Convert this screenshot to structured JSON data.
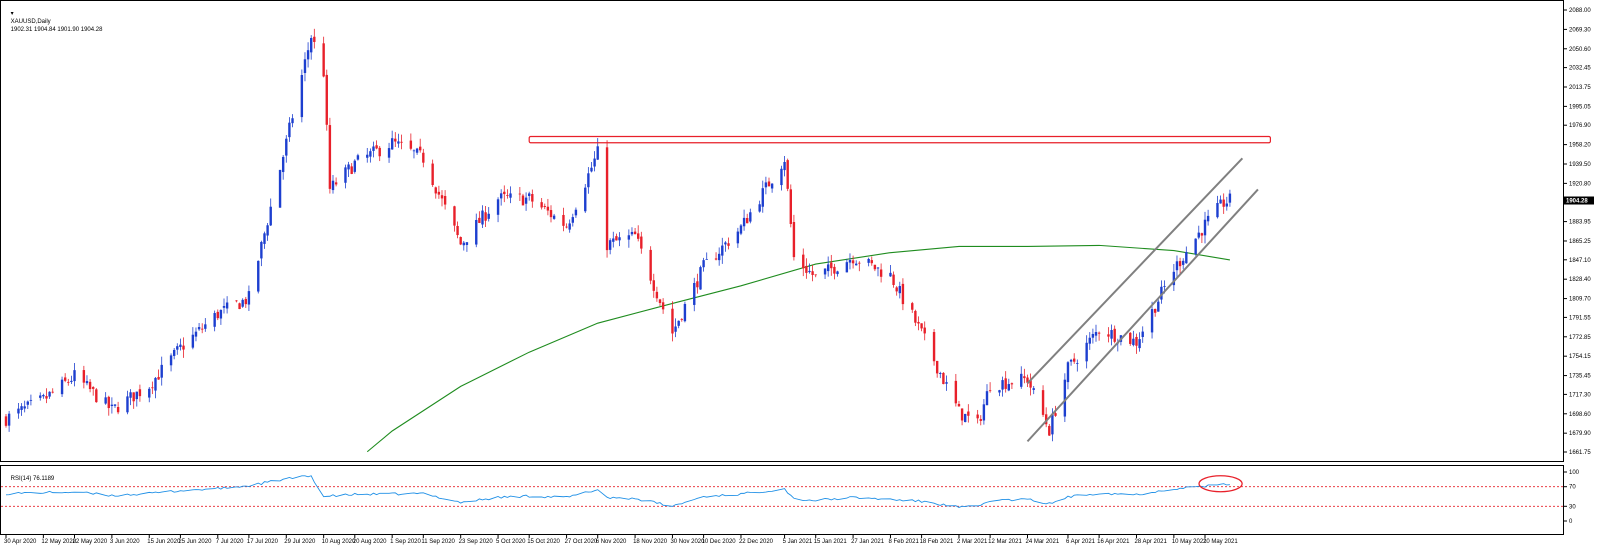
{
  "header": {
    "symbol_label": "XAUUSD,Daily",
    "ohlc": "1902.31 1904.84 1901.90 1904.28"
  },
  "rsi_panel": {
    "label": "RSI(14) 76.1189"
  },
  "colors": {
    "bull": "#1d3fcf",
    "bear": "#e8202a",
    "ma": "#1f8c1f",
    "rsi": "#1e8fe6",
    "rsi_level": "#e8202a",
    "annotation": "#e8202a",
    "channel": "#808080"
  },
  "chart_data": [
    {
      "type": "candlestick",
      "title": "",
      "price_axis_ticks": [
        "2088.00",
        "2069.30",
        "2050.60",
        "2032.45",
        "2013.75",
        "1995.05",
        "1976.90",
        "1958.20",
        "1939.50",
        "1920.80",
        "1902.65",
        "1883.95",
        "1865.25",
        "1847.10",
        "1828.40",
        "1809.70",
        "1791.55",
        "1772.85",
        "1754.15",
        "1735.45",
        "1717.30",
        "1698.60",
        "1679.90",
        "1661.75"
      ],
      "ylim": [
        1661.75,
        2088.0
      ],
      "current_price_label": "1904.28",
      "date_axis_ticks": [
        "30 Apr 2020",
        "12 May 2020",
        "22 May 2020",
        "3 Jun 2020",
        "15 Jun 2020",
        "25 Jun 2020",
        "7 Jul 2020",
        "17 Jul 2020",
        "29 Jul 2020",
        "10 Aug 2020",
        "20 Aug 2020",
        "1 Sep 2020",
        "11 Sep 2020",
        "23 Sep 2020",
        "5 Oct 2020",
        "15 Oct 2020",
        "27 Oct 2020",
        "6 Nov 2020",
        "18 Nov 2020",
        "30 Nov 2020",
        "10 Dec 2020",
        "22 Dec 2020",
        "5 Jan 2021",
        "15 Jan 2021",
        "27 Jan 2021",
        "8 Feb 2021",
        "18 Feb 2021",
        "2 Mar 2021",
        "12 Mar 2021",
        "24 Mar 2021",
        "6 Apr 2021",
        "16 Apr 2021",
        "28 Apr 2021",
        "10 May 2021",
        "20 May 2021"
      ],
      "close_path": [
        [
          "30 Apr 2020",
          1694
        ],
        [
          "12 May 2020",
          1712
        ],
        [
          "22 May 2020",
          1735
        ],
        [
          "3 Jun 2020",
          1702
        ],
        [
          "15 Jun 2020",
          1726
        ],
        [
          "25 Jun 2020",
          1762
        ],
        [
          "7 Jul 2020",
          1795
        ],
        [
          "17 Jul 2020",
          1810
        ],
        [
          "29 Jul 2020",
          1960
        ],
        [
          "6 Aug 2020",
          2063
        ],
        [
          "10 Aug 2020",
          2028
        ],
        [
          "12 Aug 2020",
          1915
        ],
        [
          "20 Aug 2020",
          1940
        ],
        [
          "1 Sep 2020",
          1960
        ],
        [
          "11 Sep 2020",
          1945
        ],
        [
          "23 Sep 2020",
          1862
        ],
        [
          "5 Oct 2020",
          1906
        ],
        [
          "15 Oct 2020",
          1906
        ],
        [
          "27 Oct 2020",
          1880
        ],
        [
          "6 Nov 2020",
          1950
        ],
        [
          "9 Nov 2020",
          1862
        ],
        [
          "18 Nov 2020",
          1870
        ],
        [
          "30 Nov 2020",
          1777
        ],
        [
          "10 Dec 2020",
          1840
        ],
        [
          "22 Dec 2020",
          1878
        ],
        [
          "5 Jan 2021",
          1945
        ],
        [
          "8 Jan 2021",
          1849
        ],
        [
          "15 Jan 2021",
          1830
        ],
        [
          "27 Jan 2021",
          1850
        ],
        [
          "8 Feb 2021",
          1832
        ],
        [
          "18 Feb 2021",
          1776
        ],
        [
          "2 Mar 2021",
          1700
        ],
        [
          "8 Mar 2021",
          1688
        ],
        [
          "12 Mar 2021",
          1727
        ],
        [
          "24 Mar 2021",
          1732
        ],
        [
          "31 Mar 2021",
          1683
        ],
        [
          "6 Apr 2021",
          1742
        ],
        [
          "16 Apr 2021",
          1780
        ],
        [
          "28 Apr 2021",
          1768
        ],
        [
          "10 May 2021",
          1838
        ],
        [
          "20 May 2021",
          1881
        ],
        [
          "26 May 2021",
          1902
        ],
        [
          "28 May 2021",
          1904.28
        ]
      ],
      "moving_average": [
        [
          "24 Aug 2020",
          1662
        ],
        [
          "1 Sep 2020",
          1682
        ],
        [
          "23 Sep 2020",
          1725
        ],
        [
          "15 Oct 2020",
          1758
        ],
        [
          "6 Nov 2020",
          1786
        ],
        [
          "30 Nov 2020",
          1805
        ],
        [
          "22 Dec 2020",
          1822
        ],
        [
          "15 Jan 2021",
          1843
        ],
        [
          "8 Feb 2021",
          1854
        ],
        [
          "2 Mar 2021",
          1860
        ],
        [
          "24 Mar 2021",
          1860
        ],
        [
          "16 Apr 2021",
          1861
        ],
        [
          "10 May 2021",
          1856
        ],
        [
          "28 May 2021",
          1847
        ]
      ],
      "resistance_zone": {
        "start": "15 Oct 2020",
        "end": "10 Jun 2021",
        "low": 1960,
        "high": 1966
      },
      "channel_lines": [
        {
          "from": [
            "24 Mar 2021",
            1728
          ],
          "to": [
            "1 Jun 2021",
            1945
          ]
        },
        {
          "from": [
            "24 Mar 2021",
            1672
          ],
          "to": [
            "6 Jun 2021",
            1915
          ]
        }
      ]
    },
    {
      "type": "line",
      "title": "",
      "ylim": [
        0,
        100
      ],
      "levels": [
        30,
        70
      ],
      "y_ticks": [
        "100",
        "70",
        "30",
        "0"
      ],
      "rsi_path": [
        [
          "30 Apr 2020",
          56
        ],
        [
          "12 May 2020",
          58
        ],
        [
          "22 May 2020",
          59
        ],
        [
          "3 Jun 2020",
          52
        ],
        [
          "15 Jun 2020",
          56
        ],
        [
          "25 Jun 2020",
          62
        ],
        [
          "7 Jul 2020",
          66
        ],
        [
          "17 Jul 2020",
          72
        ],
        [
          "29 Jul 2020",
          86
        ],
        [
          "6 Aug 2020",
          92
        ],
        [
          "10 Aug 2020",
          50
        ],
        [
          "20 Aug 2020",
          54
        ],
        [
          "1 Sep 2020",
          55
        ],
        [
          "11 Sep 2020",
          56
        ],
        [
          "23 Sep 2020",
          38
        ],
        [
          "5 Oct 2020",
          48
        ],
        [
          "15 Oct 2020",
          51
        ],
        [
          "27 Oct 2020",
          48
        ],
        [
          "6 Nov 2020",
          64
        ],
        [
          "9 Nov 2020",
          48
        ],
        [
          "18 Nov 2020",
          46
        ],
        [
          "30 Nov 2020",
          30
        ],
        [
          "10 Dec 2020",
          50
        ],
        [
          "22 Dec 2020",
          55
        ],
        [
          "5 Jan 2021",
          66
        ],
        [
          "8 Jan 2021",
          45
        ],
        [
          "15 Jan 2021",
          42
        ],
        [
          "27 Jan 2021",
          48
        ],
        [
          "8 Feb 2021",
          44
        ],
        [
          "18 Feb 2021",
          40
        ],
        [
          "2 Mar 2021",
          28
        ],
        [
          "8 Mar 2021",
          29
        ],
        [
          "12 Mar 2021",
          42
        ],
        [
          "24 Mar 2021",
          44
        ],
        [
          "31 Mar 2021",
          35
        ],
        [
          "6 Apr 2021",
          49
        ],
        [
          "16 Apr 2021",
          57
        ],
        [
          "28 Apr 2021",
          54
        ],
        [
          "10 May 2021",
          66
        ],
        [
          "20 May 2021",
          71
        ],
        [
          "26 May 2021",
          74
        ],
        [
          "28 May 2021",
          76
        ]
      ],
      "annotation": {
        "type": "ellipse",
        "start": "20 May 2021",
        "end": "30 May 2021"
      }
    }
  ]
}
